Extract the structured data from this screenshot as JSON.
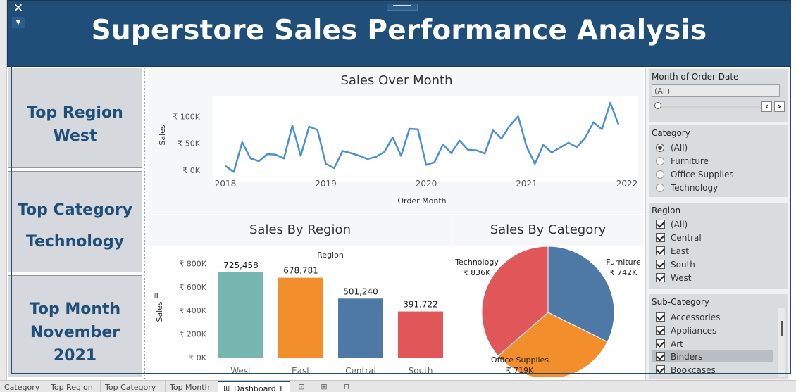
{
  "header": {
    "title": "Superstore Sales Performance Analysis"
  },
  "icons": {
    "close": "close-icon",
    "dropdown": "chevron-down-icon",
    "grip": "drag-handle-icon"
  },
  "kpis": {
    "region": {
      "l1": "Top Region",
      "l2": "West"
    },
    "category": {
      "l1": "Top Category",
      "l2": "Technology"
    },
    "month": {
      "l1": "Top Month",
      "l2": "November",
      "l3": "2021"
    }
  },
  "panels": {
    "line_title": "Sales Over Month",
    "region_title": "Sales By Region",
    "category_title": "Sales By Category"
  },
  "colors": {
    "header": "#1f4e79",
    "line": "#4a90d9",
    "west": "#76b7b2",
    "east": "#f28e2b",
    "central": "#4e79a7",
    "south": "#e15759",
    "technology": "#e15759",
    "furniture": "#4e79a7",
    "office_supplies": "#f28e2b"
  },
  "chart_data": [
    {
      "type": "line",
      "title": "Sales Over Month",
      "xlabel": "Order Month",
      "ylabel": "Sales",
      "x_ticks": [
        "2018",
        "2019",
        "2020",
        "2021",
        "2022"
      ],
      "y_ticks": [
        "₹ 0K",
        "₹ 50K",
        "₹ 100K"
      ],
      "ylim": [
        0,
        120000
      ],
      "xlim": [
        "2018-01",
        "2022-01"
      ],
      "grid": false,
      "series": [
        {
          "x": [
            "2018-01",
            "2018-02",
            "2018-03",
            "2018-04",
            "2018-05",
            "2018-06",
            "2018-07",
            "2018-08",
            "2018-09",
            "2018-10",
            "2018-11",
            "2018-12",
            "2019-01",
            "2019-02",
            "2019-03",
            "2019-04",
            "2019-05",
            "2019-06",
            "2019-07",
            "2019-08",
            "2019-09",
            "2019-10",
            "2019-11",
            "2019-12",
            "2020-01",
            "2020-02",
            "2020-03",
            "2020-04",
            "2020-05",
            "2020-06",
            "2020-07",
            "2020-08",
            "2020-09",
            "2020-10",
            "2020-11",
            "2020-12",
            "2021-01",
            "2021-02",
            "2021-03",
            "2021-04",
            "2021-05",
            "2021-06",
            "2021-07",
            "2021-08",
            "2021-09",
            "2021-10",
            "2021-11",
            "2021-12"
          ],
          "values": [
            8000,
            -3000,
            52000,
            22000,
            17000,
            30000,
            29000,
            22000,
            83000,
            27000,
            81000,
            75000,
            12000,
            4000,
            36000,
            32000,
            27000,
            21000,
            25000,
            34000,
            61000,
            27000,
            77000,
            76000,
            10000,
            15000,
            48000,
            32000,
            55000,
            38000,
            37000,
            31000,
            74000,
            59000,
            83000,
            100000,
            44000,
            12000,
            47000,
            33000,
            42000,
            51000,
            43000,
            60000,
            89000,
            76000,
            125000,
            85000
          ]
        }
      ]
    },
    {
      "type": "bar",
      "title": "Sales By Region",
      "legend_title": "Region",
      "ylabel": "Sales",
      "categories": [
        "West",
        "East",
        "Central",
        "South"
      ],
      "values": [
        725458,
        678781,
        501240,
        391722
      ],
      "value_labels": [
        "725,458",
        "678,781",
        "501,240",
        "391,722"
      ],
      "y_ticks": [
        0,
        200000,
        400000,
        600000,
        800000
      ],
      "y_tick_labels": [
        "₹ 0K",
        "₹ 200K",
        "₹ 400K",
        "₹ 600K",
        "₹ 800K"
      ],
      "ylim": [
        0,
        850000
      ]
    },
    {
      "type": "pie",
      "title": "Sales By Category",
      "categories": [
        "Furniture",
        "Office Supplies",
        "Technology"
      ],
      "values": [
        742,
        719,
        836
      ],
      "value_labels": [
        "₹ 742K",
        "₹ 719K",
        "₹ 836K"
      ]
    }
  ],
  "filters": {
    "month": {
      "title": "Month of Order Date",
      "value": "(All)",
      "prev": "‹",
      "next": "›"
    },
    "category": {
      "title": "Category",
      "options": [
        "(All)",
        "Furniture",
        "Office Supplies",
        "Technology"
      ]
    },
    "region": {
      "title": "Region",
      "options": [
        "(All)",
        "Central",
        "East",
        "South",
        "West"
      ]
    },
    "subcategory": {
      "title": "Sub-Category",
      "options": [
        "Accessories",
        "Appliances",
        "Art",
        "Binders",
        "Bookcases"
      ]
    }
  },
  "tabs": [
    "Category",
    "Top Region",
    "Top Category",
    "Top Month",
    "Dashboard 1"
  ]
}
